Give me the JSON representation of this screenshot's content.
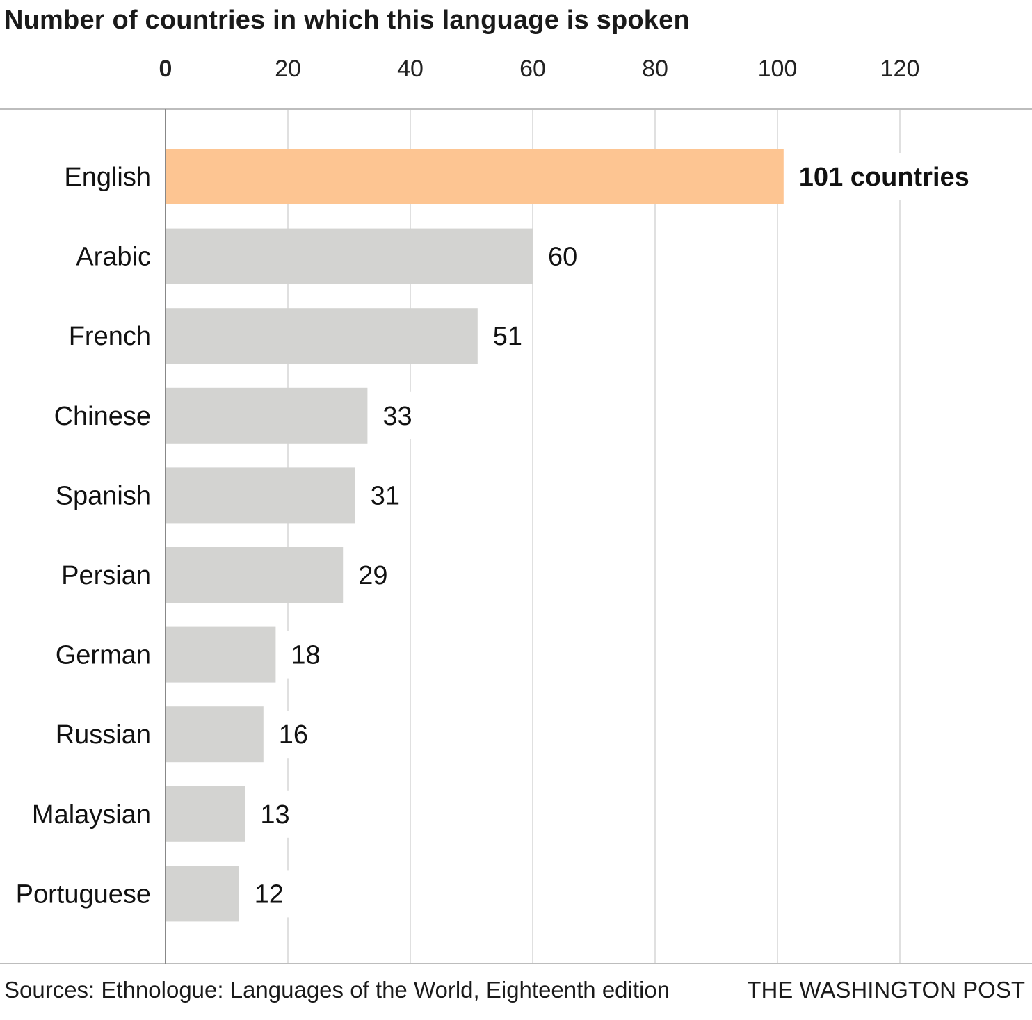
{
  "chart_data": {
    "type": "bar",
    "orientation": "horizontal",
    "title": "Number of countries in which this language is spoken",
    "categories": [
      "English",
      "Arabic",
      "French",
      "Chinese",
      "Spanish",
      "Persian",
      "German",
      "Russian",
      "Malaysian",
      "Portuguese"
    ],
    "values": [
      101,
      60,
      51,
      33,
      31,
      29,
      18,
      16,
      13,
      12
    ],
    "value_labels": [
      "101 countries",
      "60",
      "51",
      "33",
      "31",
      "29",
      "18",
      "16",
      "13",
      "12"
    ],
    "highlight_index": 0,
    "xticks": [
      "0",
      "20",
      "40",
      "60",
      "80",
      "100",
      "120"
    ],
    "xtick_values": [
      0,
      20,
      40,
      60,
      80,
      100,
      120
    ],
    "xlim": [
      0,
      140
    ],
    "xaxis_position": "top",
    "grid": true,
    "colors": {
      "highlight": "#fdc592",
      "bar": "#d3d3d1",
      "grid": "#d6d6d6",
      "axis": "#888888",
      "divider": "#bdbdbd"
    }
  },
  "footer": {
    "source": "Sources: Ethnologue: Languages of the World, Eighteenth edition",
    "credit": "THE WASHINGTON POST"
  }
}
